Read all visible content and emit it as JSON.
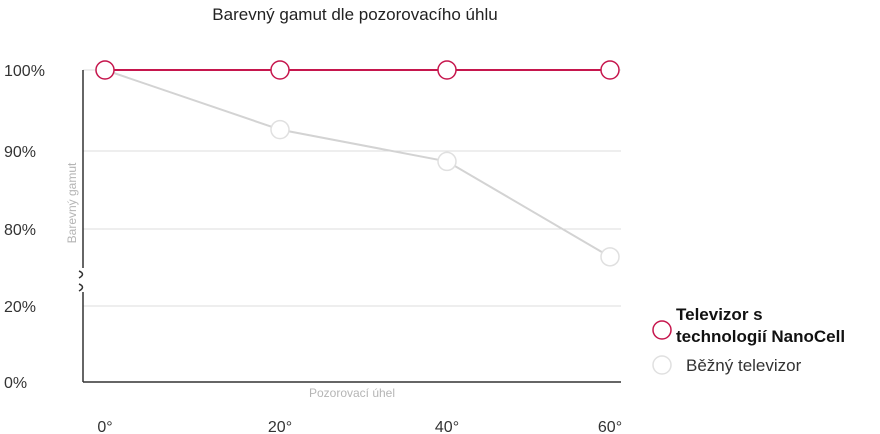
{
  "chart_data": {
    "type": "line",
    "title": "Barevný gamut dle pozorovacího úhlu",
    "xlabel": "Pozorovací úhel",
    "ylabel": "Barevný gamut",
    "categories": [
      "0°",
      "20°",
      "40°",
      "60°"
    ],
    "y_ticks": [
      "100%",
      "90%",
      "80%",
      "20%",
      "0%"
    ],
    "axis_break": true,
    "grid": true,
    "legend_position": "right",
    "series": [
      {
        "name": "Televizor s technologií NanoCell",
        "values": [
          100,
          100,
          100,
          100
        ],
        "color": "#c6164d"
      },
      {
        "name": "Běžný televizor",
        "values": [
          100,
          92.5,
          88.5,
          76.5
        ],
        "color": "#d3d3d3"
      }
    ],
    "legend": [
      {
        "line1": "Televizor s",
        "line2": "technologií NanoCell"
      },
      {
        "line1": "Běžný televizor"
      }
    ]
  }
}
